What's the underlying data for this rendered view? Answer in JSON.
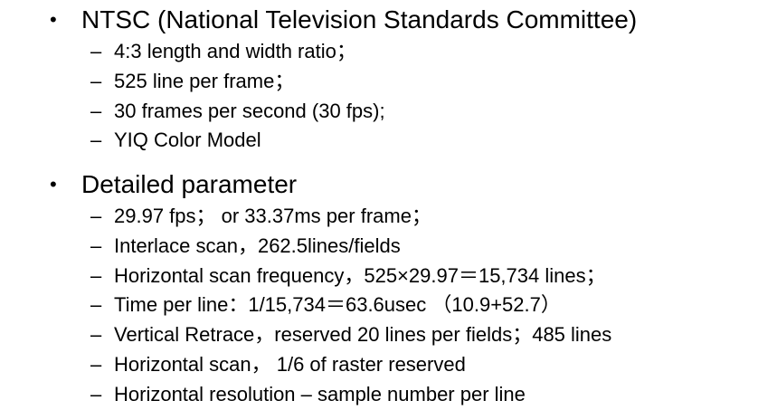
{
  "sections": [
    {
      "title": "NTSC (National Television Standards Committee)",
      "items": [
        "4:3 length and width ratio；",
        "525 line per frame；",
        "30 frames per second (30 fps);",
        "YIQ Color Model"
      ]
    },
    {
      "title": "Detailed parameter",
      "items": [
        "29.97 fps； or  33.37ms per frame；",
        "Interlace scan，262.5lines/fields",
        "Horizontal scan frequency，525×29.97＝15,734 lines；",
        "Time per line：1/15,734＝63.6usec （10.9+52.7）",
        "Vertical Retrace，reserved 20 lines per fields；485 lines",
        "Horizontal scan，  1/6  of raster reserved",
        "Horizontal resolution – sample number per line"
      ]
    }
  ],
  "symbols": {
    "bullet": "•",
    "dash": "–"
  }
}
